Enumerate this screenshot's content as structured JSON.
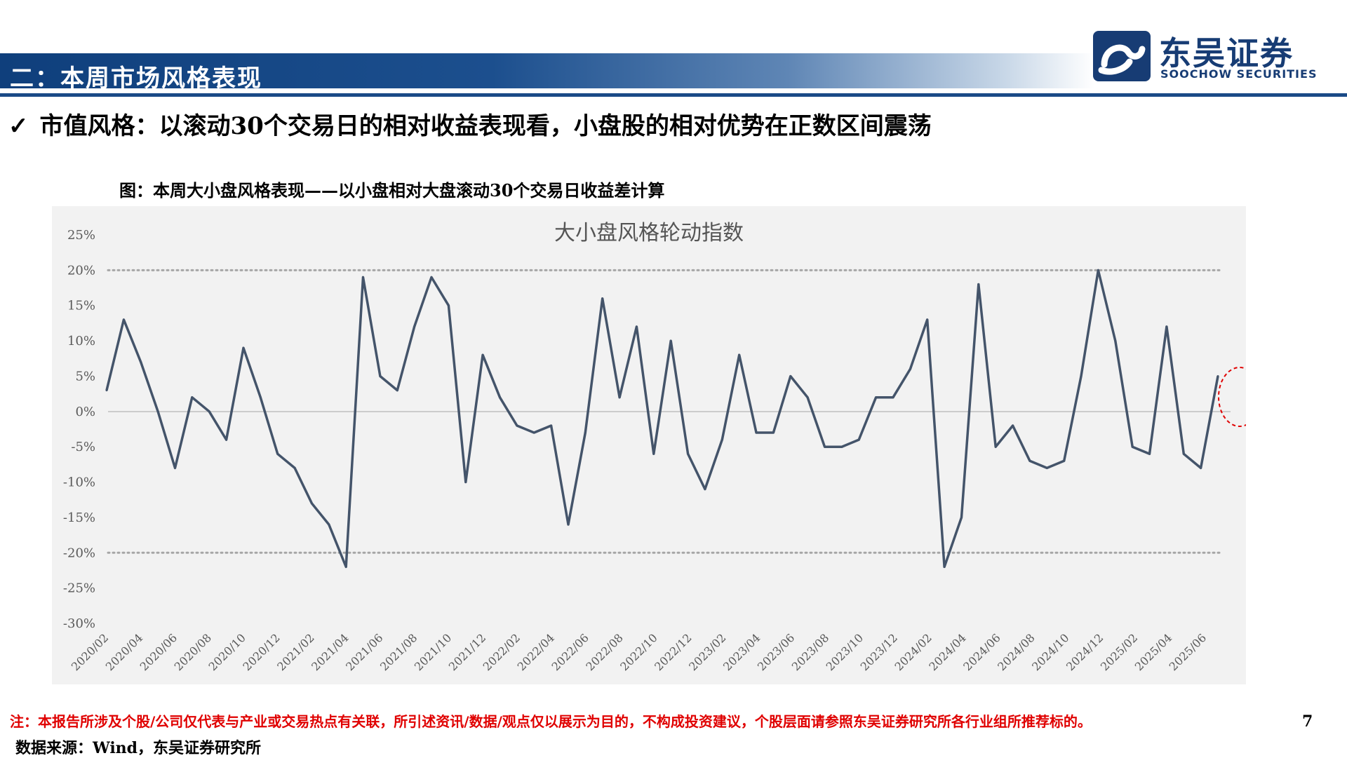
{
  "header": {
    "section_title": "二：本周市场风格表现",
    "logo_cn": "东吴证券",
    "logo_en": "SOOCHOW SECURITIES",
    "band_color": "#1a4a87"
  },
  "subtitle": {
    "check": "✓",
    "text": "市值风格：以滚动30个交易日的相对收益表现看，小盘股的相对优势在正数区间震荡"
  },
  "figure": {
    "caption": "图：本周大小盘风格表现——以小盘相对大盘滚动30个交易日收益差计算"
  },
  "chart_data": {
    "type": "line",
    "title": "大小盘风格轮动指数",
    "ylim": [
      -30,
      25
    ],
    "y_ticks": [
      "25%",
      "20%",
      "15%",
      "10%",
      "5%",
      "0%",
      "-5%",
      "-10%",
      "-15%",
      "-20%",
      "-25%",
      "-30%"
    ],
    "x_ticks": [
      "2020/02",
      "2020/04",
      "2020/06",
      "2020/08",
      "2020/10",
      "2020/12",
      "2021/02",
      "2021/04",
      "2021/06",
      "2021/08",
      "2021/10",
      "2021/12",
      "2022/02",
      "2022/04",
      "2022/06",
      "2022/08",
      "2022/10",
      "2022/12",
      "2023/02",
      "2023/04",
      "2023/06",
      "2023/08",
      "2023/10",
      "2023/12",
      "2024/02",
      "2024/04",
      "2024/06",
      "2024/08",
      "2024/10",
      "2024/12",
      "2025/02",
      "2025/04",
      "2025/06"
    ],
    "reference_lines": [
      20,
      -20
    ],
    "line_color": "#44546a",
    "highlight": "latest values circled in red dashed ellipse",
    "series": [
      {
        "x": [
          "2020/01",
          "2020/02",
          "2020/03",
          "2020/04",
          "2020/05",
          "2020/06",
          "2020/07",
          "2020/08",
          "2020/09",
          "2020/10",
          "2020/11",
          "2020/12",
          "2021/01",
          "2021/02",
          "2021/03",
          "2021/04",
          "2021/05",
          "2021/06",
          "2021/07",
          "2021/08",
          "2021/09",
          "2021/10",
          "2021/11",
          "2021/12",
          "2022/01",
          "2022/02",
          "2022/03",
          "2022/04",
          "2022/05",
          "2022/06",
          "2022/07",
          "2022/08",
          "2022/09",
          "2022/10",
          "2022/11",
          "2022/12",
          "2023/01",
          "2023/02",
          "2023/03",
          "2023/04",
          "2023/05",
          "2023/06",
          "2023/07",
          "2023/08",
          "2023/09",
          "2023/10",
          "2023/11",
          "2023/12",
          "2024/01",
          "2024/02",
          "2024/03",
          "2024/04",
          "2024/05",
          "2024/06",
          "2024/07",
          "2024/08",
          "2024/09",
          "2024/10",
          "2024/11",
          "2024/12",
          "2025/01",
          "2025/02",
          "2025/03",
          "2025/04",
          "2025/05",
          "2025/06"
        ],
        "values": [
          3,
          13,
          7,
          0,
          -8,
          2,
          0,
          -4,
          9,
          2,
          -6,
          -8,
          -13,
          -16,
          -22,
          19,
          5,
          3,
          12,
          19,
          15,
          -10,
          8,
          2,
          -2,
          -3,
          -2,
          -16,
          -3,
          16,
          2,
          12,
          -6,
          10,
          -6,
          -11,
          -4,
          8,
          -3,
          -3,
          5,
          2,
          -5,
          -5,
          -4,
          2,
          2,
          6,
          13,
          -22,
          -15,
          18,
          -5,
          -2,
          -7,
          -8,
          -7,
          5,
          20,
          10,
          -5,
          -6,
          12,
          -6,
          -8,
          5
        ]
      }
    ]
  },
  "footer": {
    "note": "注：本报告所涉及个股/公司仅代表与产业或交易热点有关联，所引述资讯/数据/观点仅以展示为目的，不构成投资建议，个股层面请参照东吴证券研究所各行业组所推荐标的。",
    "page_number": "7",
    "source": "数据来源：Wind，东吴证券研究所"
  }
}
